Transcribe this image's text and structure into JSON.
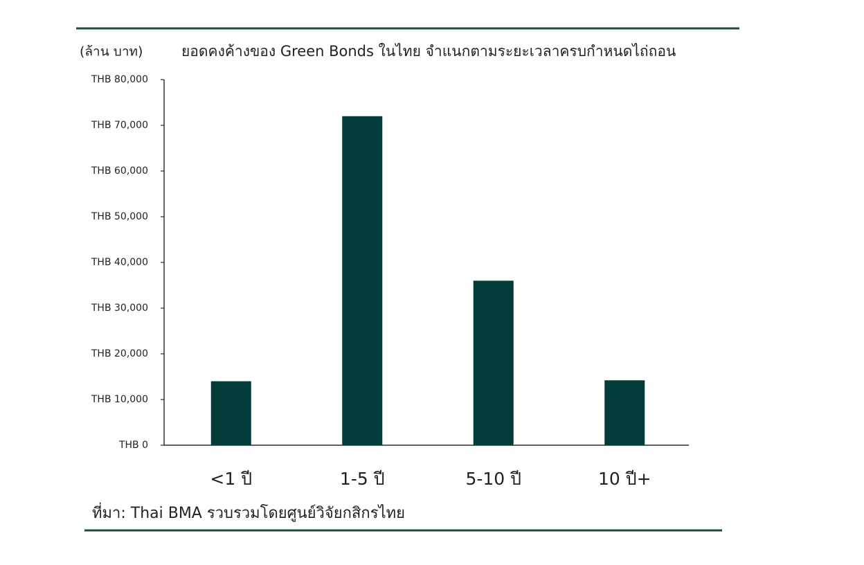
{
  "chart_data": {
    "type": "bar",
    "title": "ยอดคงค้างของ Green Bonds ในไทย จำแนกตามระยะเวลาครบกำหนดไถ่ถอน",
    "y_axis_label": "(ล้าน บาท)",
    "source": "ที่มา: Thai BMA รวบรวมโดยศูนย์วิจัยกสิกรไทย",
    "categories": [
      "<1 ปี",
      "1-5 ปี",
      "5-10 ปี",
      "10 ปี+"
    ],
    "values": [
      14000,
      72000,
      36000,
      14200
    ],
    "color": "#013c3a",
    "ylim": [
      0,
      80000
    ],
    "yticks": [
      {
        "value": 0,
        "label": "THB 0"
      },
      {
        "value": 10000,
        "label": "THB 10,000"
      },
      {
        "value": 20000,
        "label": "THB 20,000"
      },
      {
        "value": 30000,
        "label": "THB 30,000"
      },
      {
        "value": 40000,
        "label": "THB 40,000"
      },
      {
        "value": 50000,
        "label": "THB 50,000"
      },
      {
        "value": 60000,
        "label": "THB 60,000"
      },
      {
        "value": 70000,
        "label": "THB 70,000"
      },
      {
        "value": 80000,
        "label": "THB 80,000"
      }
    ],
    "grid": false
  }
}
